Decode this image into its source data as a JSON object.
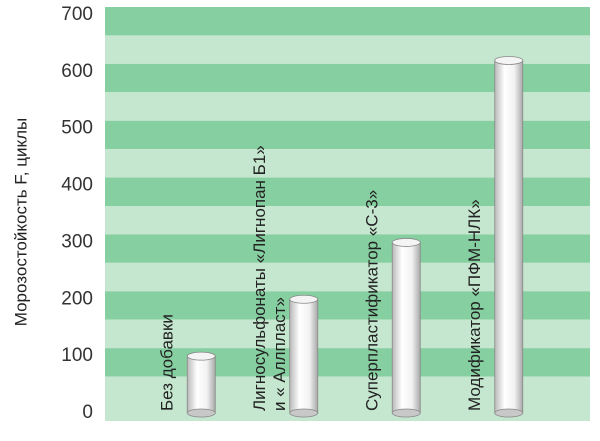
{
  "chart_data": {
    "type": "bar",
    "y_label": "Морозостойкость F, циклы",
    "categories": [
      [
        "Без добавки"
      ],
      [
        "Лигносульфонаты «Лигнопан Б1»",
        "и « Аллпласт»"
      ],
      [
        "Суперпластификатор «С-3»"
      ],
      [
        "Модификатор «ПФМ-НЛК»"
      ]
    ],
    "values": [
      100,
      200,
      300,
      620
    ],
    "ylim": [
      0,
      700
    ],
    "yticks": [
      0,
      100,
      200,
      300,
      400,
      500,
      600,
      700
    ],
    "grid": true
  }
}
